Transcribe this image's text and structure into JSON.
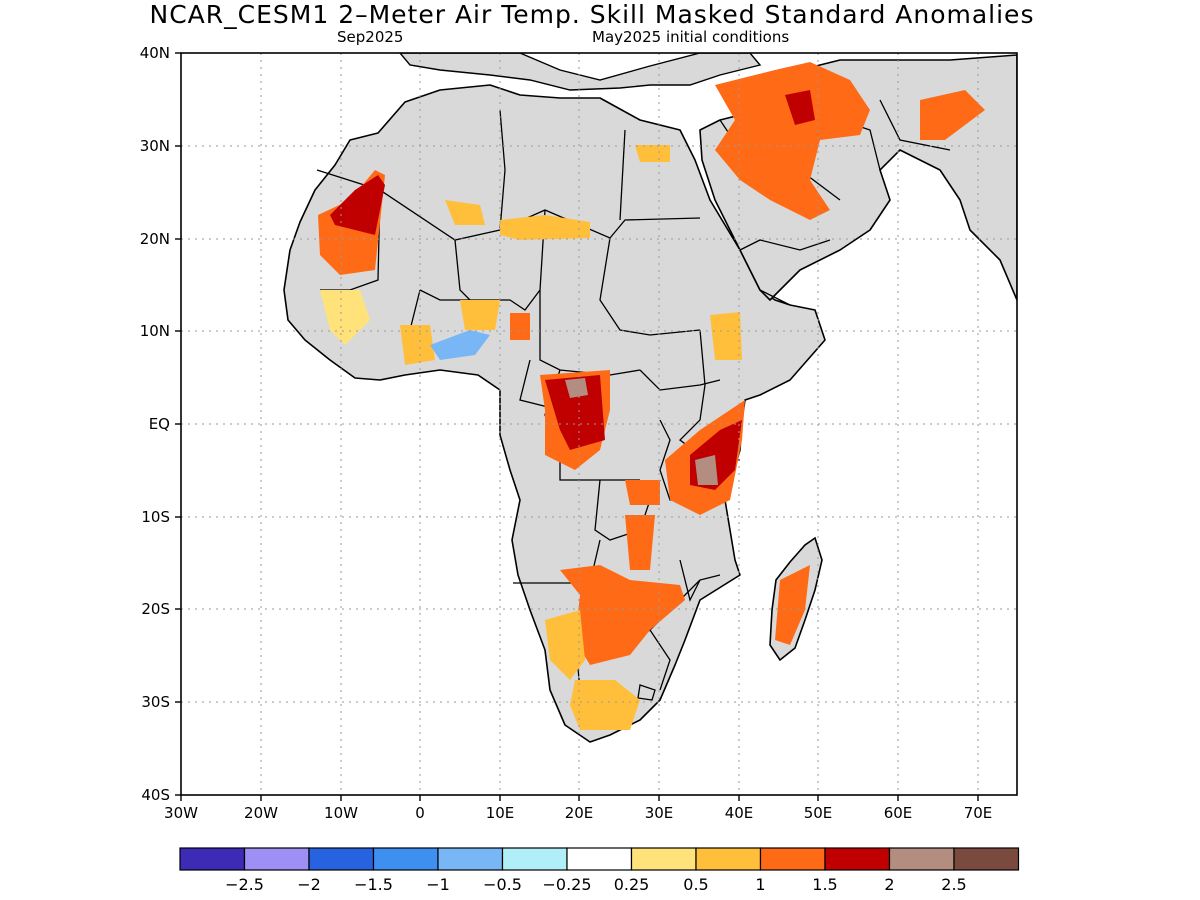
{
  "title": "NCAR_CESM1 2–Meter Air Temp. Skill Masked Standard Anomalies",
  "subtitle_left": "Sep2025",
  "subtitle_right": "May2025 initial conditions",
  "lat_ticks": [
    "40N",
    "30N",
    "20N",
    "10N",
    "EQ",
    "10S",
    "20S",
    "30S",
    "40S"
  ],
  "lon_ticks": [
    "30W",
    "20W",
    "10W",
    "0",
    "10E",
    "20E",
    "30E",
    "40E",
    "50E",
    "60E",
    "70E"
  ],
  "extent": {
    "lon": [
      -30,
      75
    ],
    "lat": [
      -40,
      40
    ]
  },
  "colorbar": {
    "colors": [
      "#3d2bb5",
      "#9e8ff5",
      "#2763e0",
      "#3d8ff0",
      "#78b6f5",
      "#b0eef8",
      "#ffffff",
      "#ffe27a",
      "#ffbf3a",
      "#ff6a17",
      "#c00000",
      "#b38d80",
      "#7a4a3e"
    ],
    "labels": [
      "−2.5",
      "−2",
      "−1.5",
      "−1",
      "−0.5",
      "−0.25",
      "0.25",
      "0.5",
      "1",
      "1.5",
      "2",
      "2.5"
    ]
  },
  "legend_colors": {
    "masked_land": "#d9d9d9",
    "ocean": "#ffffff"
  }
}
